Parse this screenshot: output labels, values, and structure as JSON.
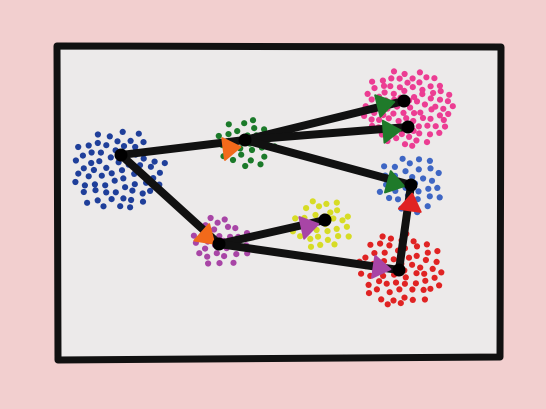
{
  "colors": {
    "background": "#f2cfcf",
    "canvas": "#eceaea",
    "frame": "#111111",
    "edge": "#111111",
    "node_center": "#000000"
  },
  "nodes": [
    {
      "id": "navy",
      "color": "#1f3f9a",
      "dots": 70
    },
    {
      "id": "darkgreen",
      "color": "#1b7a2a",
      "dots": 26
    },
    {
      "id": "pink",
      "color": "#ec3d93",
      "dots": 90
    },
    {
      "id": "lightblue",
      "color": "#3e66c4",
      "dots": 34
    },
    {
      "id": "purple",
      "color": "#a845a6",
      "dots": 30
    },
    {
      "id": "yellow",
      "color": "#d7dc25",
      "dots": 32
    },
    {
      "id": "red",
      "color": "#e02323",
      "dots": 64
    }
  ],
  "edges": [
    {
      "from": "navy",
      "to": "darkgreen",
      "arrow_color": "#f26a1b"
    },
    {
      "from": "navy",
      "to": "purple",
      "arrow_color": "#f26a1b"
    },
    {
      "from": "darkgreen",
      "to": "pink",
      "arrow_color": "#1f7a2a"
    },
    {
      "from": "darkgreen",
      "to": "pink",
      "arrow_color": "#1f7a2a"
    },
    {
      "from": "darkgreen",
      "to": "lightblue",
      "arrow_color": "#1f7a2a"
    },
    {
      "from": "purple",
      "to": "yellow",
      "arrow_color": "#a845a6"
    },
    {
      "from": "purple",
      "to": "red",
      "arrow_color": "#a845a6"
    },
    {
      "from": "red",
      "to": "lightblue",
      "arrow_color": "#e02323"
    }
  ]
}
